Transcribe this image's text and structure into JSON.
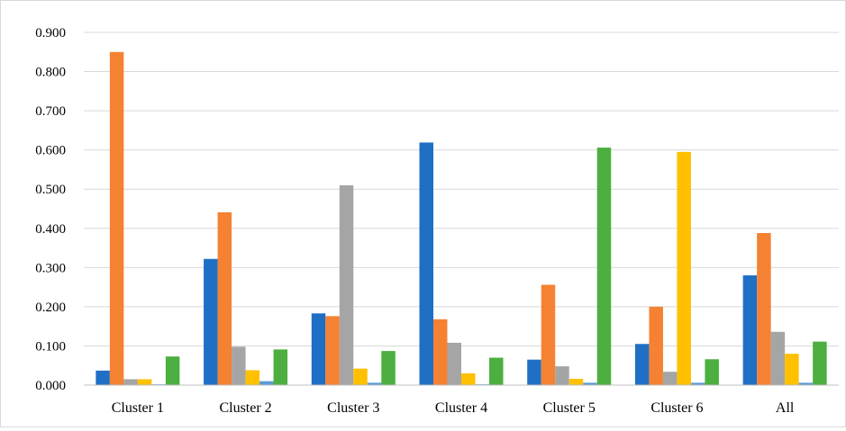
{
  "chart_data": {
    "type": "bar",
    "title": "",
    "xlabel": "",
    "ylabel": "",
    "ylim": [
      0,
      0.9
    ],
    "yticks": [
      "0.000",
      "0.100",
      "0.200",
      "0.300",
      "0.400",
      "0.500",
      "0.600",
      "0.700",
      "0.800",
      "0.900"
    ],
    "grid": true,
    "legend": "none",
    "categories": [
      "Cluster 1",
      "Cluster 2",
      "Cluster 3",
      "Cluster 4",
      "Cluster 5",
      "Cluster 6",
      "All"
    ],
    "series": [
      {
        "color": "#1f6fc5",
        "values": [
          0.037,
          0.322,
          0.183,
          0.619,
          0.065,
          0.105,
          0.28
        ]
      },
      {
        "color": "#f58232",
        "values": [
          0.85,
          0.441,
          0.176,
          0.168,
          0.256,
          0.2,
          0.388
        ]
      },
      {
        "color": "#a5a5a5",
        "values": [
          0.015,
          0.098,
          0.51,
          0.108,
          0.048,
          0.034,
          0.136
        ]
      },
      {
        "color": "#ffc000",
        "values": [
          0.015,
          0.038,
          0.042,
          0.03,
          0.016,
          0.595,
          0.08
        ]
      },
      {
        "color": "#5b9bd5",
        "values": [
          0.002,
          0.01,
          0.006,
          0.002,
          0.006,
          0.006,
          0.006
        ]
      },
      {
        "color": "#4caf3f",
        "values": [
          0.073,
          0.091,
          0.087,
          0.07,
          0.606,
          0.066,
          0.111
        ]
      }
    ]
  }
}
